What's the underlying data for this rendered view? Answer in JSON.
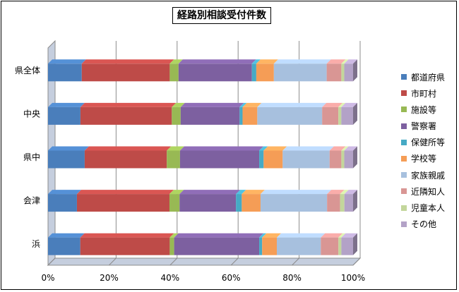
{
  "chart_data": {
    "type": "bar",
    "orientation": "horizontal",
    "stacked": "100%",
    "three_d": true,
    "title": "経路別相談受付件数",
    "categories": [
      "県全体",
      "中央",
      "県中",
      "会津",
      "浜"
    ],
    "series": [
      {
        "name": "都道府県",
        "color": "#4a7ebb",
        "values": [
          11.5,
          11,
          12.5,
          10,
          11
        ]
      },
      {
        "name": "市町村",
        "color": "#be4b48",
        "values": [
          30,
          31,
          28,
          32,
          30.5
        ]
      },
      {
        "name": "施設等",
        "color": "#98b954",
        "values": [
          3,
          3,
          4.5,
          3.5,
          1.5
        ]
      },
      {
        "name": "警察署",
        "color": "#7d60a0",
        "values": [
          25,
          20,
          27,
          19.5,
          29
        ]
      },
      {
        "name": "保健所等",
        "color": "#46aac5",
        "values": [
          1.5,
          1,
          1.5,
          2,
          1
        ]
      },
      {
        "name": "学校等",
        "color": "#f59d56",
        "values": [
          6,
          5,
          6.5,
          6.5,
          5
        ]
      },
      {
        "name": "家族親戚",
        "color": "#a7c0de",
        "values": [
          18,
          22,
          16,
          23,
          15
        ]
      },
      {
        "name": "近隣知人",
        "color": "#d99694",
        "values": [
          5,
          5.5,
          4,
          4.5,
          6
        ]
      },
      {
        "name": "児童本人",
        "color": "#c3d69b",
        "values": [
          1,
          1,
          1,
          1.5,
          1
        ]
      },
      {
        "name": "その他",
        "color": "#b3a2c7",
        "values": [
          3,
          4,
          3,
          3,
          4
        ]
      }
    ],
    "xlim": [
      0,
      100
    ],
    "xticks": [
      "0%",
      "20%",
      "40%",
      "60%",
      "80%",
      "100%"
    ],
    "grid": true,
    "legend_position": "right"
  }
}
